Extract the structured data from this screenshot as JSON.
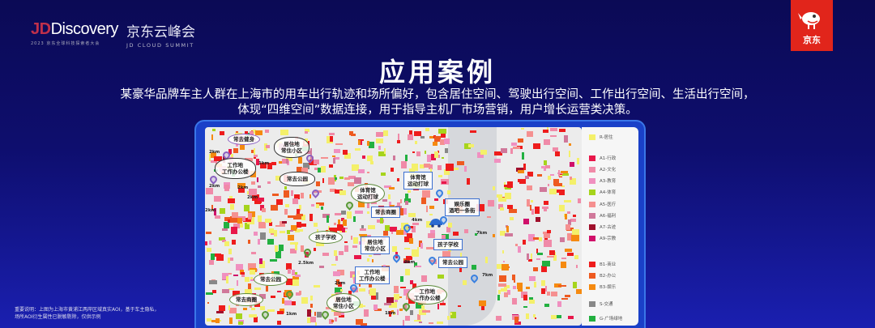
{
  "header": {
    "logo_text": "Discovery",
    "logo_prefix": "JD",
    "logo_subtitle": "2023 京东全球科技探索者大会",
    "event_cn": "京东云峰会",
    "event_en": "JD CLOUD SUMMIT",
    "brand_label": "京东",
    "brand_color": "#e1251b"
  },
  "title": "应用案例",
  "description": [
    "某豪华品牌车主人群在上海市的用车出行轨迹和场所偏好，包含居住空间、驾驶出行空间、工作出行空间、生活出行空间，",
    "体现“四维空间”数据连接，用于指导主机厂市场营销，用户增长运营类决策。"
  ],
  "map": {
    "labels": [
      {
        "t": "常去健身",
        "s": "purple"
      },
      {
        "t": "居住地\n常住小区",
        "s": "black"
      },
      {
        "t": "工作地\n工作办公楼",
        "s": "black"
      },
      {
        "t": "常去公园",
        "s": "black"
      },
      {
        "t": "体育馆\n运动打球",
        "s": "green"
      },
      {
        "t": "体育馆\n运动打球",
        "s": "blue"
      },
      {
        "t": "娱乐圈\n酒吧一条街",
        "s": "blue"
      },
      {
        "t": "常去商圈",
        "s": "blue"
      },
      {
        "t": "孩子学校",
        "s": "green"
      },
      {
        "t": "居住地\n常住小区",
        "s": "blue"
      },
      {
        "t": "孩子学校",
        "s": "blue"
      },
      {
        "t": "常去公园",
        "s": "blue"
      },
      {
        "t": "工作地\n工作办公楼",
        "s": "blue"
      },
      {
        "t": "常去公园",
        "s": "green"
      },
      {
        "t": "工作地\n工作办公楼",
        "s": "green"
      },
      {
        "t": "常去商圈",
        "s": "green"
      },
      {
        "t": "居住地\n常住小区",
        "s": "green"
      }
    ],
    "distances": [
      "2km",
      "1km",
      "2km",
      "2km",
      "2km",
      "2km",
      "7km",
      "4km",
      "2km",
      "2.5km",
      "1km",
      "1km",
      "2km",
      "7km"
    ]
  },
  "legend": [
    {
      "code": "R-居住",
      "color": "#f4f06a"
    },
    {
      "code": "A1-行政",
      "color": "#e8174a"
    },
    {
      "code": "A2-文化",
      "color": "#f08aa8"
    },
    {
      "code": "A3-教育",
      "color": "#f090c0"
    },
    {
      "code": "A4-体育",
      "color": "#a6d41c"
    },
    {
      "code": "A5-医疗",
      "color": "#f59090"
    },
    {
      "code": "A6-福利",
      "color": "#d0789a"
    },
    {
      "code": "A7-古迹",
      "color": "#a0102c"
    },
    {
      "code": "A9-宗教",
      "color": "#d0106a"
    },
    {
      "code": "B1-商业",
      "color": "#ee1c1c"
    },
    {
      "code": "B2-办公",
      "color": "#ee5a20"
    },
    {
      "code": "B3-娱乐",
      "color": "#f58a10"
    },
    {
      "code": "S-交通",
      "color": "#888888"
    },
    {
      "code": "G-广场绿地",
      "color": "#22b040"
    }
  ],
  "note": [
    "重要说明：上图为上海市黄浦江两岸区域真实AOI，基于车主隐私，",
    "场所AOI衍生属性已脱敏剔除，仅供示例"
  ]
}
